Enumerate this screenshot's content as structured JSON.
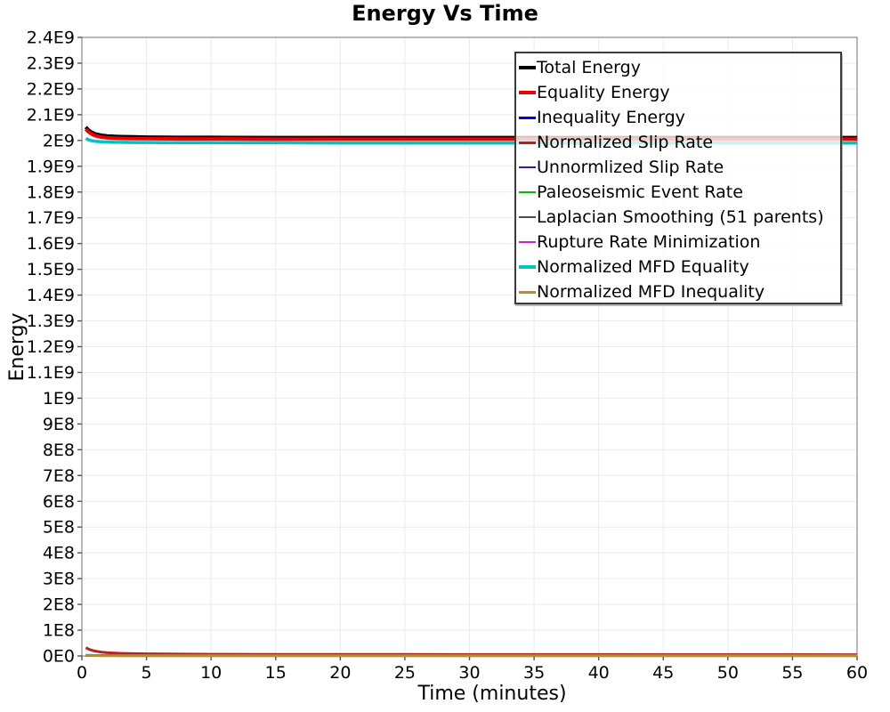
{
  "title": "Energy Vs Time",
  "axes": {
    "x": {
      "label": "Time (minutes)",
      "tick_interval": 5,
      "tick_labels": [
        "0",
        "5",
        "10",
        "15",
        "20",
        "25",
        "30",
        "35",
        "40",
        "45",
        "50",
        "55",
        "60"
      ]
    },
    "y": {
      "label": "Energy",
      "tick_interval": 100000000.0,
      "tick_labels": [
        "0E0",
        "1E8",
        "2E8",
        "3E8",
        "4E8",
        "5E8",
        "6E8",
        "7E8",
        "8E8",
        "9E8",
        "1E9",
        "1.1E9",
        "1.2E9",
        "1.3E9",
        "1.4E9",
        "1.5E9",
        "1.6E9",
        "1.7E9",
        "1.8E9",
        "1.9E9",
        "2E9",
        "2.1E9",
        "2.2E9",
        "2.3E9",
        "2.4E9"
      ]
    }
  },
  "style": {
    "grid_color": "#ebebeb",
    "plot_border_color": "#999999",
    "tick_color": "#555555",
    "text_color": "#000000",
    "legend_border_color": "#3b3b3b",
    "legend_bg_color": "rgba(255,255,255,0.78)"
  },
  "chart_data": {
    "type": "line",
    "title": "Energy Vs Time",
    "xlabel": "Time (minutes)",
    "ylabel": "Energy",
    "xlim": [
      0,
      60
    ],
    "ylim": [
      0,
      2400000000.0
    ],
    "grid": true,
    "legend_position": "top-right-inside",
    "x": [
      0.3,
      0.5,
      0.75,
      1,
      1.5,
      2,
      2.5,
      3,
      4,
      5,
      7.5,
      10,
      15,
      20,
      25,
      30,
      35,
      40,
      45,
      50,
      55,
      60
    ],
    "series": [
      {
        "name": "Total Energy",
        "color": "#000000",
        "width": 4,
        "values": [
          2052000000.0,
          2041000000.0,
          2032000000.0,
          2026000000.0,
          2020000000.0,
          2017000000.0,
          2016000000.0,
          2015000000.0,
          2014000000.0,
          2013000000.0,
          2012000000.0,
          2012000000.0,
          2011000000.0,
          2011000000.0,
          2011000000.0,
          2011000000.0,
          2011000000.0,
          2011000000.0,
          2011000000.0,
          2011000000.0,
          2011000000.0,
          2011000000.0
        ]
      },
      {
        "name": "Equality Energy",
        "color": "#ee0000",
        "width": 4,
        "values": [
          2044000000.0,
          2034000000.0,
          2025000000.0,
          2019000000.0,
          2013000000.0,
          2010000000.0,
          2009000000.0,
          2008000000.0,
          2007000000.0,
          2007000000.0,
          2006000000.0,
          2006000000.0,
          2005000000.0,
          2005000000.0,
          2005000000.0,
          2005000000.0,
          2005000000.0,
          2005000000.0,
          2005000000.0,
          2005000000.0,
          2005000000.0,
          2005000000.0
        ]
      },
      {
        "name": "Inequality Energy",
        "color": "#0000ee",
        "width": 3,
        "values": [
          2200000.0,
          2000000.0,
          1900000.0,
          1800000.0,
          1700000.0,
          1600000.0,
          1600000.0,
          1500000.0,
          1500000.0,
          1500000.0,
          1400000.0,
          1400000.0,
          1400000.0,
          1300000.0,
          1300000.0,
          1300000.0,
          1300000.0,
          1300000.0,
          1300000.0,
          1300000.0,
          1300000.0,
          1300000.0
        ]
      },
      {
        "name": "Normalized Slip Rate",
        "color": "#b22222",
        "width": 3,
        "values": [
          32000000.0,
          27000000.0,
          22000000.0,
          19000000.0,
          15000000.0,
          12500000.0,
          11000000.0,
          10000000.0,
          9000000.0,
          8200000.0,
          7200000.0,
          6700000.0,
          6200000.0,
          5900000.0,
          5700000.0,
          5600000.0,
          5500000.0,
          5400000.0,
          5300000.0,
          5200000.0,
          5100000.0,
          5000000.0
        ]
      },
      {
        "name": "Unnormlized Slip Rate",
        "color": "#2222b2",
        "width": 2,
        "values": [
          900000.0,
          800000.0,
          700000.0,
          650000.0,
          600000.0,
          550000.0,
          520000.0,
          500000.0,
          470000.0,
          450000.0,
          420000.0,
          400000.0,
          380000.0,
          360000.0,
          350000.0,
          340000.0,
          330000.0,
          330000.0,
          320000.0,
          320000.0,
          310000.0,
          310000.0
        ]
      },
      {
        "name": "Paleoseismic Event Rate",
        "color": "#00bb00",
        "width": 2,
        "values": [
          4200000.0,
          3800000.0,
          3500000.0,
          3300000.0,
          3100000.0,
          3000000.0,
          2900000.0,
          2800000.0,
          2800000.0,
          2700000.0,
          2700000.0,
          2600000.0,
          2600000.0,
          2600000.0,
          2500000.0,
          2500000.0,
          2500000.0,
          2500000.0,
          2500000.0,
          2500000.0,
          2500000.0,
          2500000.0
        ]
      },
      {
        "name": "Laplacian Smoothing (51 parents)",
        "color": "#4d4d4d",
        "width": 2,
        "values": [
          600000.0,
          550000.0,
          500000.0,
          460000.0,
          420000.0,
          400000.0,
          380000.0,
          360000.0,
          340000.0,
          330000.0,
          310000.0,
          300000.0,
          280000.0,
          270000.0,
          260000.0,
          260000.0,
          250000.0,
          250000.0,
          250000.0,
          240000.0,
          240000.0,
          240000.0
        ]
      },
      {
        "name": "Rupture Rate Minimization",
        "color": "#cc22cc",
        "width": 2,
        "values": [
          300000.0,
          280000.0,
          260000.0,
          240000.0,
          220000.0,
          210000.0,
          200000.0,
          190000.0,
          180000.0,
          180000.0,
          170000.0,
          160000.0,
          160000.0,
          150000.0,
          150000.0,
          150000.0,
          140000.0,
          140000.0,
          140000.0,
          140000.0,
          140000.0,
          140000.0
        ]
      },
      {
        "name": "Normalized MFD Equality",
        "color": "#00c3c3",
        "width": 3.5,
        "values": [
          2008000000.0,
          2003000000.0,
          1999000000.0,
          1997000000.0,
          1995000000.0,
          1994000000.0,
          1993000000.0,
          1993000000.0,
          1992000000.0,
          1992000000.0,
          1991000000.0,
          1991000000.0,
          1991000000.0,
          1990000000.0,
          1990000000.0,
          1990000000.0,
          1990000000.0,
          1990000000.0,
          1990000000.0,
          1990000000.0,
          1990000000.0,
          1990000000.0
        ]
      },
      {
        "name": "Normalized MFD Inequality",
        "color": "#b5921e",
        "width": 3,
        "values": [
          1500000.0,
          1400000.0,
          1300000.0,
          1300000.0,
          1200000.0,
          1200000.0,
          1100000.0,
          1100000.0,
          1100000.0,
          1000000.0,
          1000000.0,
          1000000.0,
          1000000.0,
          1000000.0,
          1000000.0,
          1000000.0,
          1000000.0,
          1000000.0,
          1000000.0,
          1000000.0,
          1000000.0,
          1000000.0
        ]
      }
    ]
  }
}
